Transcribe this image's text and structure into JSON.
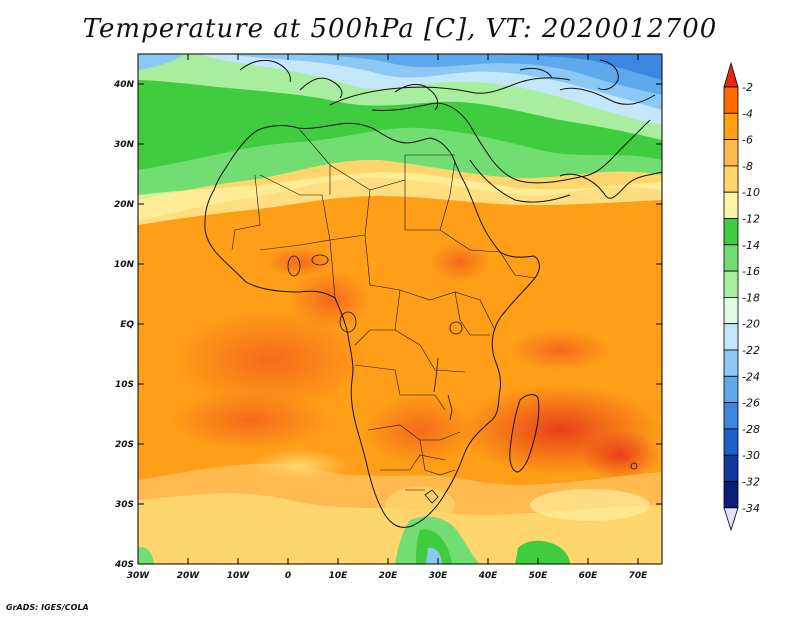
{
  "title": "Temperature at 500hPa [C], VT: 2020012700",
  "credit": "GrADS: IGES/COLA",
  "map": {
    "lat_labels": [
      "40N",
      "30N",
      "20N",
      "10N",
      "EQ",
      "10S",
      "20S",
      "30S",
      "40S"
    ],
    "lon_labels": [
      "30W",
      "20W",
      "10W",
      "0",
      "10E",
      "20E",
      "30E",
      "40E",
      "50E",
      "60E",
      "70E"
    ],
    "extent": {
      "lon": [
        -30,
        75
      ],
      "lat": [
        -40,
        45
      ]
    }
  },
  "colorbar": {
    "labels": [
      "-2",
      "-4",
      "-6",
      "-8",
      "-10",
      "-12",
      "-14",
      "-16",
      "-18",
      "-20",
      "-22",
      "-24",
      "-26",
      "-28",
      "-30",
      "-32",
      "-34"
    ],
    "colors": [
      "#e8290b",
      "#ff6a00",
      "#ff9e17",
      "#ffb94e",
      "#ffd56e",
      "#fff3a6",
      "#3fcc3f",
      "#72dd72",
      "#a9ee9e",
      "#e1fbe3",
      "#c4e6fb",
      "#8bc9f4",
      "#5ea9ec",
      "#3a86e0",
      "#1f5fc8",
      "#13389d",
      "#0c1a78"
    ],
    "top_arrow": "#e8290b",
    "bottom_arrow": "#e8e0fb"
  }
}
